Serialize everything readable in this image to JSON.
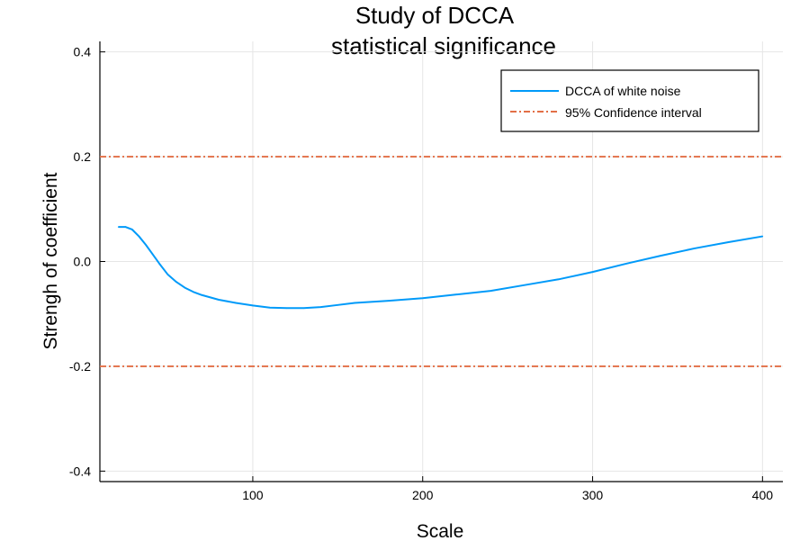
{
  "chart_data": {
    "type": "line",
    "title_lines": [
      "Study of DCCA",
      "statistical significance"
    ],
    "xlabel": "Scale",
    "ylabel": "Strengh of coefficient",
    "xlim": [
      10,
      412
    ],
    "ylim": [
      -0.42,
      0.42
    ],
    "x_ticks": [
      100,
      200,
      300,
      400
    ],
    "x_tick_labels": [
      "100",
      "200",
      "300",
      "400"
    ],
    "y_ticks": [
      0.4,
      0.2,
      0.0,
      -0.2,
      -0.4
    ],
    "y_tick_labels": [
      "0.4",
      "0.2",
      "0.0",
      "-0.2",
      "-0.4"
    ],
    "grid": true,
    "legend_position": "top-right",
    "series": [
      {
        "name": "DCCA of white noise",
        "color": "#009af9",
        "style": "solid",
        "x": [
          21,
          25,
          29,
          33,
          37,
          41,
          45,
          50,
          55,
          60,
          65,
          70,
          80,
          90,
          100,
          110,
          120,
          130,
          140,
          150,
          160,
          180,
          200,
          220,
          240,
          260,
          280,
          300,
          320,
          340,
          360,
          380,
          400
        ],
        "y": [
          0.066,
          0.066,
          0.061,
          0.048,
          0.032,
          0.014,
          -0.004,
          -0.025,
          -0.039,
          -0.05,
          -0.058,
          -0.064,
          -0.073,
          -0.079,
          -0.084,
          -0.088,
          -0.089,
          -0.089,
          -0.087,
          -0.083,
          -0.079,
          -0.075,
          -0.07,
          -0.063,
          -0.056,
          -0.045,
          -0.034,
          -0.02,
          -0.004,
          0.011,
          0.025,
          0.037,
          0.048
        ]
      },
      {
        "name": "95% Confidence interval",
        "color": "#e26f46",
        "style": "dashdot",
        "hlines": [
          0.2,
          -0.2
        ]
      }
    ]
  }
}
